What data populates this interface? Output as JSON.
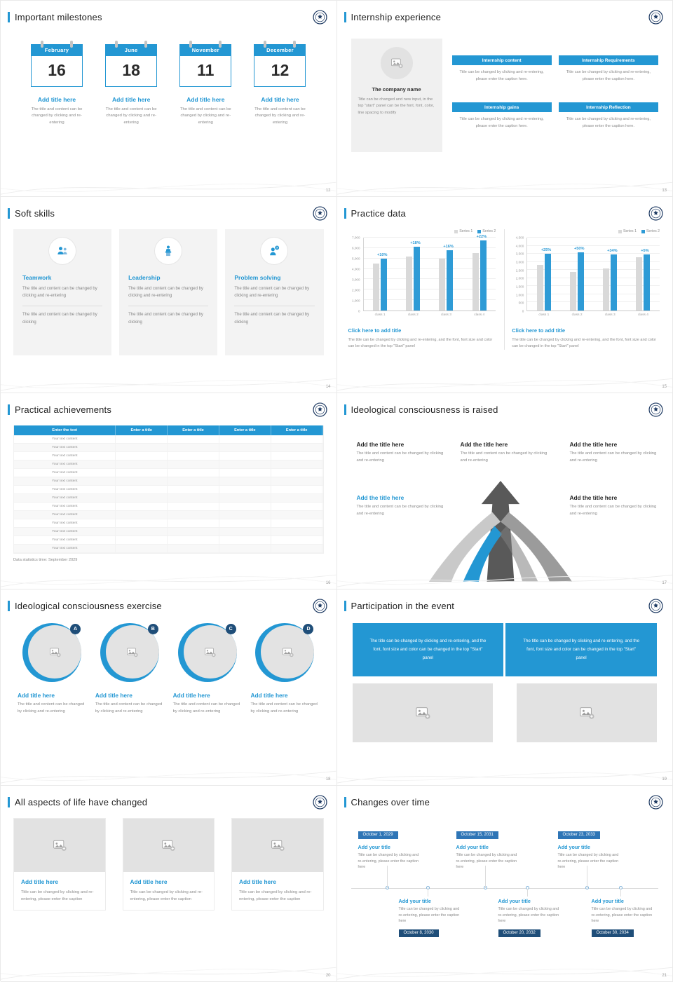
{
  "theme": {
    "accent": "#2397d3",
    "navy": "#1f4e79",
    "series1_color": "#d9d9d9",
    "series2_color": "#2e9bd6"
  },
  "slides": {
    "milestones": {
      "title": "Important milestones",
      "page": "12",
      "item_title": "Add title here",
      "item_caption": "The title and content can be changed by clicking and re-entering",
      "items": [
        {
          "month": "February",
          "day": "16"
        },
        {
          "month": "June",
          "day": "18"
        },
        {
          "month": "November",
          "day": "11"
        },
        {
          "month": "December",
          "day": "12"
        }
      ]
    },
    "internship": {
      "title": "Internship experience",
      "page": "13",
      "company_name": "The company name",
      "company_desc": "Title can be changed and new input, in the top \"start\" panel can be the font, font, color, line spacing to modify",
      "box_caption": "Title can be changed by clicking and re-entering, please enter the caption here.",
      "boxes": [
        {
          "header": "Internship content"
        },
        {
          "header": "Internship Requirements"
        },
        {
          "header": "Internship gains"
        },
        {
          "header": "Internship Reflection"
        }
      ]
    },
    "soft_skills": {
      "title": "Soft skills",
      "page": "14",
      "card_body": "The title and content can be changed by clicking and re-entering",
      "card_footer": "The title and content can be changed by clicking",
      "cards": [
        {
          "name": "Teamwork"
        },
        {
          "name": "Leadership"
        },
        {
          "name": "Problem solving"
        }
      ]
    },
    "practice": {
      "title": "Practice data",
      "page": "15",
      "link": "Click here to add title",
      "caption": "The title can be changed by clicking and re-entering, and the font, font size and color can be changed in the top \"Start\" panel"
    },
    "achievements": {
      "title": "Practical achievements",
      "page": "16",
      "headers": [
        "Enter the text",
        "Enter a title",
        "Enter a title",
        "Enter a title",
        "Enter a title"
      ],
      "rows": [
        "Your text content",
        "Your text content",
        "Your text content",
        "Your text content",
        "Your text content",
        "Your text content",
        "Your text content",
        "Your text content",
        "Your text content",
        "Your text content",
        "Your text content",
        "Your text content",
        "Your text content",
        "Your text content"
      ],
      "footnote": "Data statistics time: September 2029"
    },
    "ideology_raised": {
      "title": "Ideological consciousness is raised",
      "page": "17",
      "block_title": "Add the title here",
      "block_caption": "The title and content can be changed by clicking and re-entering"
    },
    "ideology_exercise": {
      "title": "Ideological consciousness exercise",
      "page": "18",
      "item_title": "Add title here",
      "item_caption": "The title and content can be changed by clicking and re-entering",
      "items": [
        {
          "letter": "A"
        },
        {
          "letter": "B"
        },
        {
          "letter": "C"
        },
        {
          "letter": "D"
        }
      ]
    },
    "participation": {
      "title": "Participation in the event",
      "page": "19",
      "banner_left": "The title can be changed by clicking and re-entering, and the font, font size and color can be changed in the top \"Start\" panel",
      "banner_right": "The title can be changed by clicking and re-entering, and the font, font size and color can be changed in the top \"Start\" panel"
    },
    "life_changed": {
      "title": "All aspects of life have changed",
      "page": "20",
      "item_title": "Add title here",
      "item_caption": "Title can be changed by clicking and re-entering, please enter the caption"
    },
    "timeline": {
      "title": "Changes over time",
      "page": "21",
      "entry_title": "Add your title",
      "entry_caption": "Title can be changed by clicking and re-entering, please enter the caption here",
      "top_entries": [
        {
          "date": "October 1, 2029"
        },
        {
          "date": "October 15, 2031"
        },
        {
          "date": "October 23, 2033"
        }
      ],
      "bottom_entries": [
        {
          "date": "October 8, 2030"
        },
        {
          "date": "October 20, 2032"
        },
        {
          "date": "October 30, 2034"
        }
      ]
    }
  },
  "chart_data": [
    {
      "type": "bar",
      "title": "",
      "xlabel": "",
      "ylabel": "",
      "categories": [
        "class 1",
        "class 2",
        "class 3",
        "class 4"
      ],
      "series": [
        {
          "name": "Series 1",
          "values": [
            4500,
            5200,
            5000,
            5500
          ]
        },
        {
          "name": "Series 2",
          "values": [
            4950,
            6136,
            5800,
            6710
          ]
        }
      ],
      "growth_labels": [
        "+10%",
        "+18%",
        "+16%",
        "+22%"
      ],
      "ylim": [
        0,
        7000
      ],
      "ytick_step": 1000,
      "grid": true,
      "legend_position": "top-right"
    },
    {
      "type": "bar",
      "title": "",
      "xlabel": "",
      "ylabel": "",
      "categories": [
        "class 1",
        "class 2",
        "class 3",
        "class 4"
      ],
      "series": [
        {
          "name": "Series 1",
          "values": [
            2800,
            2400,
            2600,
            3300
          ]
        },
        {
          "name": "Series 2",
          "values": [
            3500,
            3600,
            3480,
            3460
          ]
        }
      ],
      "growth_labels": [
        "+25%",
        "+50%",
        "+34%",
        "+5%"
      ],
      "ylim": [
        0,
        4500
      ],
      "ytick_step": 500,
      "grid": true,
      "legend_position": "top-right"
    }
  ]
}
